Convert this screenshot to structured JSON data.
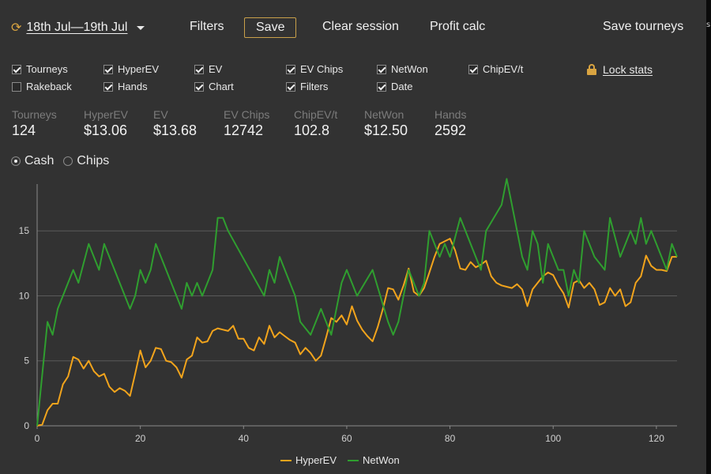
{
  "toolbar": {
    "date_range": "18th Jul—19th Jul",
    "date_icon": "sync-icon",
    "filters": "Filters",
    "save": "Save",
    "clear_session": "Clear session",
    "profit_calc": "Profit calc",
    "save_tourneys": "Save tourneys"
  },
  "right_strip_text": "s",
  "checkboxes": [
    {
      "label": "Tourneys",
      "checked": true
    },
    {
      "label": "HyperEV",
      "checked": true
    },
    {
      "label": "EV",
      "checked": true
    },
    {
      "label": "EV Chips",
      "checked": true
    },
    {
      "label": "NetWon",
      "checked": true
    },
    {
      "label": "ChipEV/t",
      "checked": true
    },
    {
      "label": "Rakeback",
      "checked": false
    },
    {
      "label": "Hands",
      "checked": true
    },
    {
      "label": "Chart",
      "checked": true
    },
    {
      "label": "Filters",
      "checked": true
    },
    {
      "label": "Date",
      "checked": true
    }
  ],
  "lock_stats": {
    "label": "Lock stats",
    "icon": "lock-icon"
  },
  "stats": [
    {
      "label": "Tourneys",
      "value": "124"
    },
    {
      "label": "HyperEV",
      "value": "$13.06"
    },
    {
      "label": "EV",
      "value": "$13.68"
    },
    {
      "label": "EV Chips",
      "value": "12742"
    },
    {
      "label": "ChipEV/t",
      "value": "102.8"
    },
    {
      "label": "NetWon",
      "value": "$12.50"
    },
    {
      "label": "Hands",
      "value": "2592"
    }
  ],
  "mode": {
    "cash": "Cash",
    "chips": "Chips",
    "selected": "cash"
  },
  "colors": {
    "hyperev": "#f2a41c",
    "netwon": "#2f9e2f",
    "accent": "#d9a441"
  },
  "chart_data": {
    "type": "line",
    "xlim": [
      0,
      124
    ],
    "ylim": [
      0,
      18.6
    ],
    "xticks": [
      0,
      20,
      40,
      60,
      80,
      100,
      120
    ],
    "yticks": [
      0,
      5,
      10,
      15
    ],
    "grid": "horizontal",
    "legend": "bottom-center",
    "series": [
      {
        "name": "HyperEV",
        "color": "#f2a41c",
        "x": [
          0,
          1,
          2,
          3,
          4,
          5,
          6,
          7,
          8,
          9,
          10,
          11,
          12,
          13,
          14,
          15,
          16,
          17,
          18,
          19,
          20,
          21,
          22,
          23,
          24,
          25,
          26,
          27,
          28,
          29,
          30,
          31,
          32,
          33,
          34,
          35,
          36,
          37,
          38,
          39,
          40,
          41,
          42,
          43,
          44,
          45,
          46,
          47,
          48,
          49,
          50,
          51,
          52,
          53,
          54,
          55,
          56,
          57,
          58,
          59,
          60,
          61,
          62,
          63,
          64,
          65,
          66,
          67,
          68,
          69,
          70,
          71,
          72,
          73,
          74,
          75,
          76,
          77,
          78,
          79,
          80,
          81,
          82,
          83,
          84,
          85,
          86,
          87,
          88,
          89,
          90,
          91,
          92,
          93,
          94,
          95,
          96,
          97,
          98,
          99,
          100,
          101,
          102,
          103,
          104,
          105,
          106,
          107,
          108,
          109,
          110,
          111,
          112,
          113,
          114,
          115,
          116,
          117,
          118,
          119,
          120,
          121,
          122,
          123,
          124
        ],
        "values": [
          0,
          0.1,
          1.2,
          1.7,
          1.7,
          3.2,
          3.8,
          5.3,
          5.1,
          4.4,
          5.0,
          4.2,
          3.8,
          4.0,
          3.0,
          2.6,
          2.9,
          2.7,
          2.3,
          4.0,
          5.8,
          4.5,
          5.0,
          6.0,
          5.9,
          5.0,
          4.9,
          4.5,
          3.7,
          5.1,
          5.4,
          6.8,
          6.4,
          6.5,
          7.3,
          7.5,
          7.4,
          7.3,
          7.7,
          6.7,
          6.7,
          6.0,
          5.8,
          6.8,
          6.3,
          7.7,
          6.8,
          7.2,
          6.9,
          6.6,
          6.4,
          5.5,
          6.0,
          5.6,
          5.0,
          5.4,
          6.8,
          8.3,
          8.0,
          8.5,
          7.8,
          9.2,
          8.1,
          7.4,
          6.9,
          6.5,
          7.6,
          9.0,
          10.6,
          10.5,
          9.7,
          10.8,
          12.1,
          10.3,
          10.0,
          10.6,
          11.8,
          13.0,
          14.0,
          14.2,
          14.4,
          13.5,
          12.1,
          12.0,
          12.6,
          12.2,
          12.4,
          12.7,
          11.5,
          11.0,
          10.8,
          10.7,
          10.6,
          10.9,
          10.5,
          9.2,
          10.5,
          11.0,
          11.5,
          11.8,
          11.6,
          10.8,
          10.2,
          9.1,
          11.0,
          11.2,
          10.6,
          11.0,
          10.5,
          9.3,
          9.5,
          10.6,
          10.0,
          10.5,
          9.2,
          9.5,
          11.0,
          11.5,
          13.1,
          12.3,
          12.0,
          12.0,
          11.9,
          13.0,
          13.0
        ]
      },
      {
        "name": "NetWon",
        "color": "#2f9e2f",
        "x": [
          0,
          2,
          3,
          4,
          7,
          8,
          10,
          12,
          13,
          18,
          19,
          20,
          21,
          22,
          23,
          28,
          29,
          30,
          31,
          32,
          34,
          35,
          36,
          37,
          44,
          45,
          46,
          47,
          50,
          51,
          53,
          55,
          56,
          57,
          59,
          60,
          62,
          65,
          68,
          69,
          70,
          72,
          74,
          75,
          76,
          78,
          79,
          80,
          82,
          83,
          84,
          85,
          86,
          87,
          90,
          91,
          92,
          94,
          95,
          96,
          97,
          98,
          99,
          100,
          101,
          102,
          103,
          104,
          105,
          106,
          107,
          108,
          110,
          111,
          113,
          114,
          115,
          116,
          117,
          118,
          119,
          121,
          122,
          123,
          124
        ],
        "values": [
          0,
          8.0,
          7.0,
          9.0,
          12.0,
          11.0,
          14.0,
          12.0,
          14.0,
          9.0,
          10.0,
          12.0,
          11.0,
          12.0,
          14.0,
          9.0,
          11.0,
          10.0,
          11.0,
          10.0,
          12.0,
          16.0,
          16.0,
          15.0,
          10.0,
          12.0,
          11.0,
          13.0,
          10.0,
          8.0,
          7.0,
          9.0,
          8.0,
          7.0,
          11.0,
          12.0,
          10.0,
          12.0,
          8.0,
          7.0,
          8.0,
          12.0,
          10.0,
          11.0,
          15.0,
          13.0,
          14.0,
          13.0,
          16.0,
          15.0,
          14.0,
          13.0,
          12.0,
          15.0,
          17.0,
          19.0,
          17.0,
          13.0,
          12.0,
          15.0,
          14.0,
          11.0,
          14.0,
          13.0,
          12.0,
          12.0,
          10.0,
          12.0,
          11.0,
          15.0,
          14.0,
          13.0,
          12.0,
          16.0,
          13.0,
          14.0,
          15.0,
          14.0,
          16.0,
          14.0,
          15.0,
          13.0,
          12.0,
          14.0,
          13.0
        ]
      }
    ]
  }
}
